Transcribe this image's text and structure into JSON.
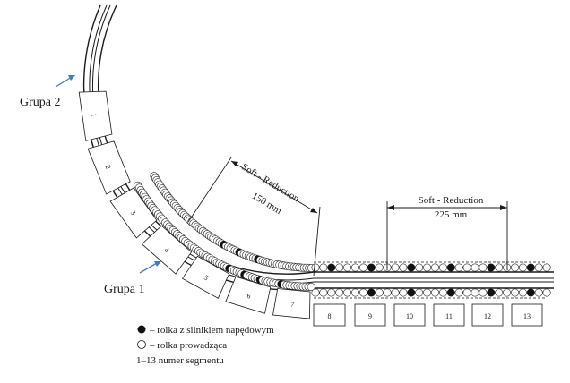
{
  "groups": {
    "group2": "Grupa 2",
    "group1": "Grupa 1"
  },
  "soft_reduction": {
    "curved": {
      "title": "Soft - Reduction",
      "length": "150 mm"
    },
    "straight": {
      "title": "Soft - Reduction",
      "length": "225 mm"
    }
  },
  "segments": [
    "1",
    "2",
    "3",
    "4",
    "5",
    "6",
    "7",
    "8",
    "9",
    "10",
    "11",
    "12",
    "13"
  ],
  "legend": {
    "driven_roll": "– rolka z silnikiem napędowym",
    "guide_roll": "– rolka prowadząca",
    "segment_numbers": "1–13 numer segmentu"
  },
  "colors": {
    "line": "#1a1a1a",
    "arrow": "#4a78b5",
    "background": "#ffffff"
  }
}
